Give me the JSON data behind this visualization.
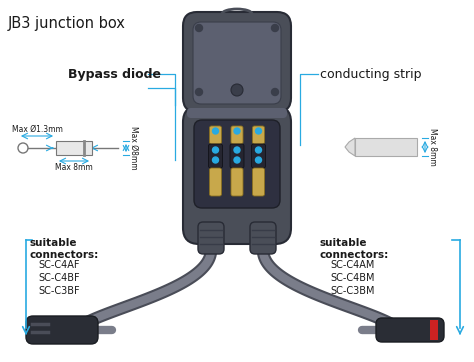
{
  "title": "JB3 junction box",
  "bypass_diode_label": "Bypass diode",
  "conducting_strip_label": "conducting strip",
  "diode_spec_diam": "Max Ø1.3mm",
  "diode_spec_len": "Max 8mm",
  "diode_vertical_spec": "Max Ø8mm",
  "strip_vertical_spec": "Max 8mm",
  "left_connectors_title": "suitable\nconnectors:",
  "left_connectors": [
    "SC-C4AF",
    "SC-C4BF",
    "SC-C3BF"
  ],
  "right_connectors_title": "suitable\nconnectors:",
  "right_connectors": [
    "SC-C4AM",
    "SC-C4BM",
    "SC-C3BM"
  ],
  "bg_color": "#ffffff",
  "box_dark": "#4a4e58",
  "box_mid": "#5c6070",
  "box_light": "#6e7285",
  "box_inner": "#3d4050",
  "win_bg": "#2e3040",
  "diode_gold": "#c8a84b",
  "diode_gold_dark": "#8a7020",
  "diode_body_dark": "#252530",
  "connector_dark": "#2a2d35",
  "cable_outer": "#4a4d58",
  "cable_inner": "#7a7d8a",
  "accent": "#29aae1",
  "text_dark": "#1a1a1a",
  "text_gray": "#555555",
  "dim_color": "#29aae1",
  "strip_fill": "#e0e0e0",
  "strip_edge": "#aaaaaa",
  "diode_schematic_fill": "#e8e8e8",
  "diode_schematic_edge": "#777777"
}
